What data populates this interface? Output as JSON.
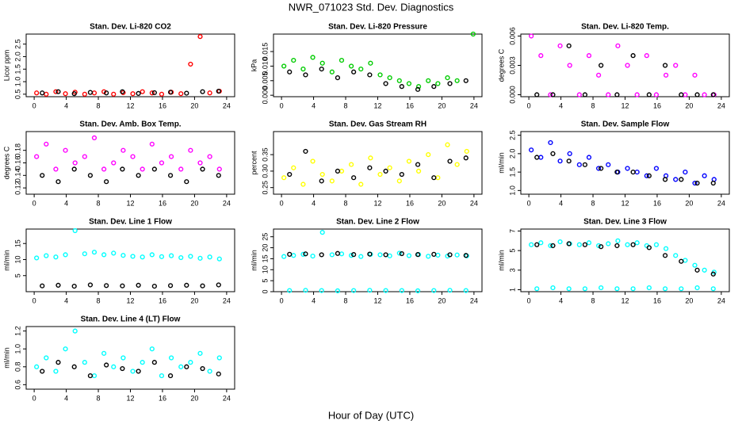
{
  "title": "NWR_071023  Std. Dev. Diagnostics",
  "xlabel": "Hour of Day (UTC)",
  "chart_data": [
    {
      "type": "scatter",
      "title": "Stan. Dev. Li-820 CO2",
      "ylabel": "Licor ppm",
      "xlim": [
        -1,
        25
      ],
      "xticks": [
        0,
        4,
        8,
        12,
        16,
        20,
        24
      ],
      "ylim": [
        0.4,
        2.9
      ],
      "yticks": [
        0.5,
        {
          "value": 1,
          "label": "1.0"
        },
        1.5,
        {
          "value": 2,
          "label": "2.0"
        },
        2.5
      ],
      "series": [
        {
          "color": "#ff0000",
          "x": [
            0.3,
            1.5,
            2.7,
            3.9,
            5.1,
            6.3,
            7.5,
            8.7,
            9.9,
            11.1,
            12.3,
            13.5,
            14.7,
            15.9,
            17.1,
            18.3,
            19.5,
            20.7,
            21.9,
            23.1
          ],
          "values": [
            0.55,
            0.5,
            0.6,
            0.52,
            0.58,
            0.5,
            0.55,
            0.6,
            0.5,
            0.56,
            0.52,
            0.6,
            0.55,
            0.5,
            0.58,
            0.52,
            1.7,
            2.8,
            0.55,
            0.62
          ]
        },
        {
          "color": "#000000",
          "x": [
            1,
            3,
            5,
            7,
            9,
            11,
            13,
            15,
            17,
            19,
            21,
            23
          ],
          "values": [
            0.55,
            0.6,
            0.52,
            0.57,
            0.55,
            0.6,
            0.53,
            0.56,
            0.58,
            0.54,
            0.6,
            0.62
          ]
        }
      ]
    },
    {
      "type": "scatter",
      "title": "Stan. Dev. Li-820 Pressure",
      "ylabel": "kPa",
      "xlim": [
        -1,
        25
      ],
      "xticks": [
        0,
        4,
        8,
        12,
        16,
        20,
        24
      ],
      "ylim": [
        -0.0005,
        0.021
      ],
      "yticks": [
        {
          "value": 0,
          "label": "0.000"
        },
        {
          "value": 0.005,
          "label": "0.005"
        },
        {
          "value": 0.01,
          "label": "0.010"
        },
        {
          "value": 0.015,
          "label": "0.015"
        }
      ],
      "series": [
        {
          "color": "#00cc00",
          "x": [
            0.3,
            1.5,
            2.7,
            3.9,
            5.1,
            6.3,
            7.5,
            8.7,
            9.9,
            11.1,
            12.3,
            13.5,
            14.7,
            15.9,
            17.1,
            18.3,
            19.5,
            20.7,
            21.9,
            23.9
          ],
          "values": [
            0.01,
            0.012,
            0.009,
            0.013,
            0.011,
            0.008,
            0.012,
            0.01,
            0.009,
            0.011,
            0.007,
            0.006,
            0.005,
            0.004,
            0.003,
            0.005,
            0.004,
            0.006,
            0.005,
            0.021
          ]
        },
        {
          "color": "#000000",
          "x": [
            1,
            3,
            5,
            7,
            9,
            11,
            13,
            15,
            17,
            19,
            21,
            23
          ],
          "values": [
            0.008,
            0.007,
            0.009,
            0.006,
            0.008,
            0.007,
            0.004,
            0.003,
            0.002,
            0.003,
            0.004,
            0.005
          ]
        }
      ]
    },
    {
      "type": "scatter",
      "title": "Stan. Dev. Li-820 Temp.",
      "ylabel": "degrees C",
      "xlim": [
        -1,
        25
      ],
      "xticks": [
        0,
        4,
        8,
        12,
        16,
        20,
        24
      ],
      "ylim": [
        -0.0002,
        0.0062
      ],
      "yticks": [
        {
          "value": 0,
          "label": "0.000"
        },
        {
          "value": 0.003,
          "label": "0.003"
        },
        {
          "value": 0.006,
          "label": "0.006"
        }
      ],
      "series": [
        {
          "color": "#ff00ff",
          "x": [
            0.3,
            1.5,
            2.7,
            3.9,
            5.1,
            6.3,
            7.5,
            8.7,
            9.9,
            11.1,
            12.3,
            13.5,
            14.7,
            15.9,
            17.1,
            18.3,
            19.5,
            20.7,
            21.9,
            23.1
          ],
          "values": [
            0.006,
            0.004,
            0,
            0.005,
            0.003,
            0,
            0.004,
            0.002,
            0,
            0.005,
            0.003,
            0,
            0.004,
            0,
            0.002,
            0.003,
            0,
            0.002,
            0,
            0
          ]
        },
        {
          "color": "#000000",
          "x": [
            1,
            3,
            5,
            7,
            9,
            11,
            13,
            15,
            17,
            19,
            21,
            23
          ],
          "values": [
            0,
            0,
            0.005,
            0,
            0.003,
            0,
            0.004,
            0,
            0.003,
            0,
            0,
            0
          ]
        }
      ]
    },
    {
      "type": "scatter",
      "title": "Stan. Dev. Amb. Box Temp.",
      "ylabel": "degrees C",
      "xlim": [
        -1,
        25
      ],
      "xticks": [
        0,
        4,
        8,
        12,
        16,
        20,
        24
      ],
      "ylim": [
        0.11,
        0.21
      ],
      "yticks": [
        0.12,
        0.14,
        0.16,
        0.18
      ],
      "series": [
        {
          "color": "#ff00ff",
          "x": [
            0.3,
            1.5,
            2.7,
            3.9,
            5.1,
            6.3,
            7.5,
            8.7,
            9.9,
            11.1,
            12.3,
            13.5,
            14.7,
            15.9,
            17.1,
            18.3,
            19.5,
            20.7,
            21.9,
            23.1
          ],
          "values": [
            0.17,
            0.19,
            0.15,
            0.18,
            0.16,
            0.17,
            0.2,
            0.15,
            0.16,
            0.18,
            0.17,
            0.15,
            0.19,
            0.16,
            0.17,
            0.15,
            0.18,
            0.16,
            0.17,
            0.15
          ]
        },
        {
          "color": "#000000",
          "x": [
            1,
            3,
            5,
            7,
            9,
            11,
            13,
            15,
            17,
            19,
            21,
            23
          ],
          "values": [
            0.14,
            0.13,
            0.15,
            0.14,
            0.13,
            0.15,
            0.14,
            0.15,
            0.14,
            0.13,
            0.15,
            0.14
          ]
        }
      ]
    },
    {
      "type": "scatter",
      "title": "Stan. Dev. Gas Stream RH",
      "ylabel": "percent",
      "xlim": [
        -1,
        25
      ],
      "xticks": [
        0,
        4,
        8,
        12,
        16,
        20,
        24
      ],
      "ylim": [
        0.23,
        0.42
      ],
      "yticks": [
        0.25,
        {
          "value": 0.3,
          "label": "0.30"
        },
        0.35
      ],
      "series": [
        {
          "color": "#ffff00",
          "x": [
            0.3,
            1.5,
            2.7,
            3.9,
            5.1,
            6.3,
            7.5,
            8.7,
            9.9,
            11.1,
            12.3,
            13.5,
            14.7,
            15.9,
            17.1,
            18.3,
            19.5,
            20.7,
            21.9,
            23.1
          ],
          "values": [
            0.28,
            0.31,
            0.26,
            0.33,
            0.29,
            0.27,
            0.3,
            0.32,
            0.26,
            0.34,
            0.29,
            0.31,
            0.27,
            0.33,
            0.3,
            0.35,
            0.28,
            0.38,
            0.32,
            0.36
          ]
        },
        {
          "color": "#000000",
          "x": [
            1,
            3,
            5,
            7,
            9,
            11,
            13,
            15,
            17,
            19,
            21,
            23
          ],
          "values": [
            0.29,
            0.36,
            0.27,
            0.3,
            0.28,
            0.31,
            0.3,
            0.29,
            0.32,
            0.28,
            0.33,
            0.34
          ]
        }
      ]
    },
    {
      "type": "scatter",
      "title": "Stan. Dev. Sample Flow",
      "ylabel": "ml/min",
      "xlim": [
        -1,
        25
      ],
      "xticks": [
        0,
        4,
        8,
        12,
        16,
        20,
        24
      ],
      "ylim": [
        0.9,
        2.6
      ],
      "yticks": [
        {
          "value": 1,
          "label": "1.0"
        },
        1.5,
        {
          "value": 2,
          "label": "2.0"
        },
        2.5
      ],
      "series": [
        {
          "color": "#0000ff",
          "x": [
            0.3,
            1.5,
            2.7,
            3.9,
            5.1,
            6.3,
            7.5,
            8.7,
            9.9,
            11.1,
            12.3,
            13.5,
            14.7,
            15.9,
            17.1,
            18.3,
            19.5,
            20.7,
            21.9,
            23.1
          ],
          "values": [
            2.1,
            1.9,
            2.3,
            1.8,
            2,
            1.7,
            1.9,
            1.6,
            1.7,
            1.5,
            1.6,
            1.5,
            1.4,
            1.6,
            1.4,
            1.3,
            1.5,
            1.2,
            1.4,
            1.3
          ]
        },
        {
          "color": "#000000",
          "x": [
            1,
            3,
            5,
            7,
            9,
            11,
            13,
            15,
            17,
            19,
            21,
            23
          ],
          "values": [
            1.9,
            2,
            1.8,
            1.7,
            1.6,
            1.5,
            1.5,
            1.4,
            1.3,
            1.3,
            1.2,
            1.2
          ]
        }
      ]
    },
    {
      "type": "scatter",
      "title": "Stan. Dev. Line 1 Flow",
      "ylabel": "ml/min",
      "xlim": [
        -1,
        25
      ],
      "xticks": [
        0,
        4,
        8,
        12,
        16,
        20,
        24
      ],
      "ylim": [
        0,
        19.5
      ],
      "yticks": [
        5,
        10,
        15
      ],
      "series": [
        {
          "color": "#00ffff",
          "x": [
            0.3,
            1.5,
            2.7,
            3.9,
            5.1,
            6.3,
            7.5,
            8.7,
            9.9,
            11.1,
            12.3,
            13.5,
            14.7,
            15.9,
            17.1,
            18.3,
            19.5,
            20.7,
            21.9,
            23.1
          ],
          "values": [
            10.5,
            11.2,
            10.8,
            11.5,
            19,
            11.8,
            12.3,
            11.5,
            12,
            11.3,
            11,
            10.8,
            11.5,
            10.9,
            11.2,
            10.6,
            11,
            10.4,
            10.8,
            10.2
          ]
        },
        {
          "color": "#000000",
          "x": [
            1,
            3,
            5,
            7,
            9,
            11,
            13,
            15,
            17,
            19,
            21,
            23
          ],
          "values": [
            1.8,
            2,
            1.7,
            2.1,
            1.9,
            1.8,
            2,
            1.7,
            1.9,
            2,
            1.8,
            2.1
          ]
        }
      ]
    },
    {
      "type": "scatter",
      "title": "Stan. Dev. Line 2 Flow",
      "ylabel": "ml/min",
      "xlim": [
        -1,
        25
      ],
      "xticks": [
        0,
        4,
        8,
        12,
        16,
        20,
        24
      ],
      "ylim": [
        0,
        28.5
      ],
      "yticks": [
        0,
        5,
        10,
        15,
        20,
        25
      ],
      "series": [
        {
          "color": "#00ffff",
          "x": [
            0.3,
            1.5,
            2.7,
            3.9,
            5.1,
            6.3,
            7.5,
            8.7,
            9.9,
            11.1,
            12.3,
            13.5,
            14.7,
            15.9,
            17.1,
            18.3,
            19.5,
            20.7,
            21.9,
            23.1
          ],
          "values": [
            16,
            16.5,
            17,
            16.2,
            27,
            16.8,
            17.2,
            16.5,
            16,
            17,
            16.8,
            16.3,
            17.5,
            16.4,
            16.9,
            16.1,
            16.6,
            16.2,
            16.7,
            16.3
          ]
        },
        {
          "color": "#00ffff",
          "x": [
            1,
            3,
            5,
            7,
            9,
            11,
            13,
            15,
            17,
            19,
            21,
            23
          ],
          "values": [
            0.5,
            0.6,
            0.5,
            0.4,
            0.5,
            0.6,
            0.5,
            0.5,
            0.4,
            0.5,
            0.6,
            0.5
          ]
        },
        {
          "color": "#000000",
          "x": [
            1,
            3,
            5,
            7,
            9,
            11,
            13,
            15,
            17,
            19,
            21,
            23
          ],
          "values": [
            17,
            17.2,
            16.8,
            17.4,
            16.9,
            17.1,
            16.8,
            17.3,
            16.9,
            17,
            16.8,
            16.5
          ]
        }
      ]
    },
    {
      "type": "scatter",
      "title": "Stan. Dev. Line 3 Flow",
      "ylabel": "ml/min",
      "xlim": [
        -1,
        25
      ],
      "xticks": [
        0,
        4,
        8,
        12,
        16,
        20,
        24
      ],
      "ylim": [
        0.8,
        7.2
      ],
      "yticks": [
        1,
        3,
        5,
        7
      ],
      "series": [
        {
          "color": "#00ffff",
          "x": [
            0.3,
            1.5,
            2.7,
            3.9,
            5.1,
            6.3,
            7.5,
            8.7,
            9.9,
            11.1,
            12.3,
            13.5,
            14.7,
            15.9,
            17.1,
            18.3,
            19.5,
            20.7,
            21.9,
            23.1
          ],
          "values": [
            5.6,
            5.8,
            5.5,
            5.9,
            5.7,
            5.6,
            5.8,
            5.5,
            5.7,
            6,
            5.6,
            5.8,
            5.5,
            5.6,
            5.2,
            4.5,
            4,
            3.5,
            3,
            2.8
          ]
        },
        {
          "color": "#00ffff",
          "x": [
            1,
            3,
            5,
            7,
            9,
            11,
            13,
            15,
            17,
            19,
            21,
            23
          ],
          "values": [
            1.1,
            1.2,
            1.1,
            1.1,
            1.2,
            1.1,
            1.1,
            1.2,
            1.1,
            1.1,
            1.2,
            1.1
          ]
        },
        {
          "color": "#000000",
          "x": [
            1,
            3,
            5,
            7,
            9,
            11,
            13,
            15,
            17,
            19,
            21,
            23
          ],
          "values": [
            5.6,
            5.5,
            5.7,
            5.6,
            5.4,
            5.5,
            5.6,
            5.3,
            4.5,
            3.9,
            3,
            2.6
          ]
        }
      ]
    },
    {
      "type": "scatter",
      "title": "Stan. Dev. Line 4 (LT) Flow",
      "ylabel": "ml/min",
      "xlim": [
        -1,
        25
      ],
      "xticks": [
        0,
        4,
        8,
        12,
        16,
        20,
        24
      ],
      "ylim": [
        0.55,
        1.25
      ],
      "yticks": [
        0.6,
        0.8,
        {
          "value": 1,
          "label": "1.0"
        },
        1.2
      ],
      "series": [
        {
          "color": "#00ffff",
          "x": [
            0.3,
            1.5,
            2.7,
            3.9,
            5.1,
            6.3,
            7.5,
            8.7,
            9.9,
            11.1,
            12.3,
            13.5,
            14.7,
            15.9,
            17.1,
            18.3,
            19.5,
            20.7,
            21.9,
            23.1
          ],
          "values": [
            0.8,
            0.9,
            0.75,
            1,
            1.2,
            0.85,
            0.7,
            0.95,
            0.8,
            0.9,
            0.75,
            0.85,
            1,
            0.7,
            0.9,
            0.8,
            0.85,
            0.95,
            0.75,
            0.9
          ]
        },
        {
          "color": "#000000",
          "x": [
            1,
            3,
            5,
            7,
            9,
            11,
            13,
            15,
            17,
            19,
            21,
            23
          ],
          "values": [
            0.75,
            0.85,
            0.8,
            0.7,
            0.82,
            0.78,
            0.75,
            0.85,
            0.7,
            0.8,
            0.78,
            0.72
          ]
        }
      ]
    }
  ]
}
